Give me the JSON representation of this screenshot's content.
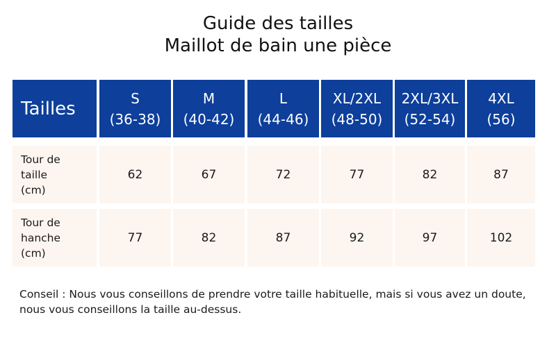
{
  "title_line1": "Guide des tailles",
  "title_line2": "Maillot de bain une pièce",
  "table": {
    "corner_label": "Tailles",
    "columns": [
      {
        "size": "S",
        "range": "(36-38)"
      },
      {
        "size": "M",
        "range": "(40-42)"
      },
      {
        "size": "L",
        "range": "(44-46)"
      },
      {
        "size": "XL/2XL",
        "range": "(48-50)"
      },
      {
        "size": "2XL/3XL",
        "range": "(52-54)"
      },
      {
        "size": "4XL",
        "range": "(56)"
      }
    ],
    "rows": [
      {
        "label": "Tour de\ntaille\n(cm)",
        "values": [
          "62",
          "67",
          "72",
          "77",
          "82",
          "87"
        ]
      },
      {
        "label": "Tour de\nhanche\n(cm)",
        "values": [
          "77",
          "82",
          "87",
          "92",
          "97",
          "102"
        ]
      }
    ]
  },
  "note": "Conseil : Nous vous conseillons de prendre votre taille habituelle, mais si vous avez un doute, nous vous conseillons la taille au-dessus.",
  "colors": {
    "header_bg": "#0d3f9b",
    "cell_bg": "#fdf5f0"
  }
}
